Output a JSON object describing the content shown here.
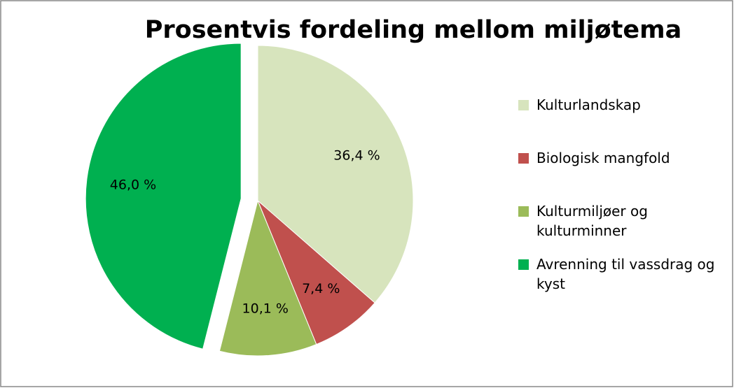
{
  "chart_data": {
    "type": "pie",
    "title": "Prosentvis fordeling mellom miljøtema",
    "categories": [
      "Kulturlandskap",
      "Biologisk mangfold",
      "Kulturmiljøer og kulturminner",
      "Avrenning til vassdrag og kyst"
    ],
    "values": [
      36.4,
      7.4,
      10.1,
      46.0
    ],
    "value_labels": [
      "36,4 %",
      "7,4 %",
      "10,1 %",
      "46,0 %"
    ],
    "colors": [
      "#d7e4bd",
      "#c0504d",
      "#9bbb59",
      "#00b050"
    ],
    "legend": "right"
  }
}
